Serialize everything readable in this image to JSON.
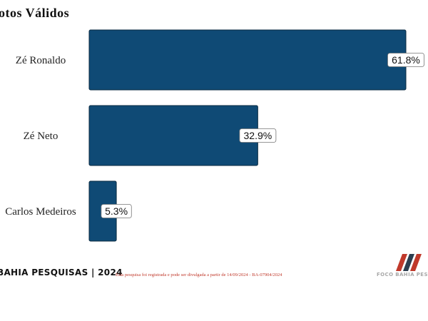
{
  "chart_data": {
    "type": "bar",
    "orientation": "horizontal",
    "title": "otos Válidos",
    "categories": [
      "Zé Ronaldo",
      "Zé Neto",
      "Carlos Medeiros"
    ],
    "values": [
      61.8,
      32.9,
      5.3
    ],
    "data_labels": [
      "61.8%",
      "32.9%",
      "5.3%"
    ],
    "xlim": [
      0,
      61.8
    ],
    "grid": false,
    "legend": "none"
  },
  "colors": {
    "bar": "#0f4a75",
    "bar_border": "#0a2a40",
    "note": "#c0392b"
  },
  "footer": {
    "left_text": "BAHIA PESQUISAS | 2024",
    "note": "Esta pesquisa foi registrada e pode ser divulgada a partir de 14/09/2024 - BA-07904/2024",
    "brand_text": "FOCO BAHIA PESQ",
    "logo_icon": "foco-bahia-logo"
  }
}
